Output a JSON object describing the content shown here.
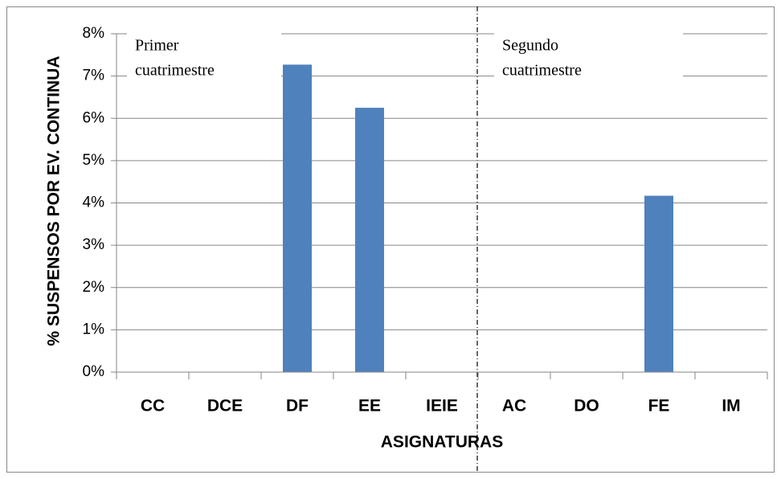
{
  "chart_data": {
    "type": "bar",
    "y_axis_title": "% SUSPENSOS POR EV. CONTINUA",
    "x_axis_title": "ASIGNATURAS",
    "annotations": [
      [
        "Primer",
        "cuatrimestre"
      ],
      [
        "Segundo",
        "cuatrimestre"
      ]
    ],
    "categories": [
      "CC",
      "DCE",
      "DF",
      "EE",
      "IEIE",
      "AC",
      "DO",
      "FE",
      "IM"
    ],
    "values": [
      0,
      0,
      7.27,
      6.25,
      0,
      0,
      0,
      4.17,
      0
    ],
    "color": "#4f81bd",
    "ylim": [
      0,
      8
    ],
    "yticks": [
      {
        "value": 0,
        "label": "0%"
      },
      {
        "value": 1,
        "label": "1%"
      },
      {
        "value": 2,
        "label": "2%"
      },
      {
        "value": 3,
        "label": "3%"
      },
      {
        "value": 4,
        "label": "4%"
      },
      {
        "value": 5,
        "label": "5%"
      },
      {
        "value": 6,
        "label": "6%"
      },
      {
        "value": 7,
        "label": "7%"
      },
      {
        "value": 8,
        "label": "8%"
      }
    ],
    "grid": true
  }
}
